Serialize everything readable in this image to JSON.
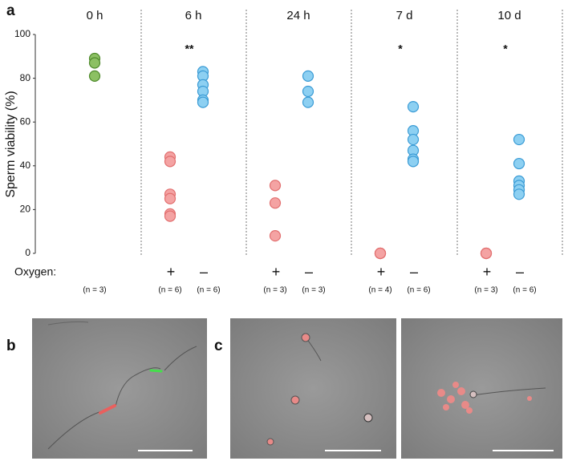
{
  "chart_data": {
    "type": "strip",
    "ylabel": "Sperm viability (%)",
    "ylim": [
      0,
      100
    ],
    "yticks": [
      0,
      20,
      40,
      60,
      80,
      100
    ],
    "row_label": "Oxygen:",
    "groups": [
      {
        "label": "0 h",
        "sets": [
          {
            "n_label": "(n = 3)",
            "color": "#8cc063",
            "values": [
              89,
              87,
              81
            ]
          }
        ]
      },
      {
        "label": "6 h",
        "significance": "**",
        "sets": [
          {
            "oxygen": "+",
            "n_label": "(n = 6)",
            "color": "#f4a3a3",
            "values": [
              44,
              42,
              27,
              25,
              18,
              17
            ]
          },
          {
            "oxygen": "–",
            "n_label": "(n = 6)",
            "color": "#8dd0f2",
            "values": [
              83,
              81,
              77,
              74,
              70,
              69
            ]
          }
        ]
      },
      {
        "label": "24 h",
        "sets": [
          {
            "oxygen": "+",
            "n_label": "(n = 3)",
            "color": "#f4a3a3",
            "values": [
              31,
              23,
              8
            ]
          },
          {
            "oxygen": "–",
            "n_label": "(n = 3)",
            "color": "#8dd0f2",
            "values": [
              81,
              74,
              69
            ]
          }
        ]
      },
      {
        "label": "7 d",
        "significance": "*",
        "sets": [
          {
            "oxygen": "+",
            "n_label": "(n = 4)",
            "color": "#f4a3a3",
            "values": [
              0,
              0,
              0,
              0
            ]
          },
          {
            "oxygen": "–",
            "n_label": "(n = 6)",
            "color": "#8dd0f2",
            "values": [
              67,
              56,
              52,
              47,
              43,
              42
            ]
          }
        ]
      },
      {
        "label": "10 d",
        "significance": "*",
        "sets": [
          {
            "oxygen": "+",
            "n_label": "(n = 3)",
            "color": "#f4a3a3",
            "values": [
              0,
              0,
              0
            ]
          },
          {
            "oxygen": "–",
            "n_label": "(n = 6)",
            "color": "#8dd0f2",
            "values": [
              52,
              41,
              33,
              31,
              29,
              27
            ]
          }
        ]
      }
    ]
  },
  "panel_labels": [
    "a",
    "b",
    "c"
  ]
}
